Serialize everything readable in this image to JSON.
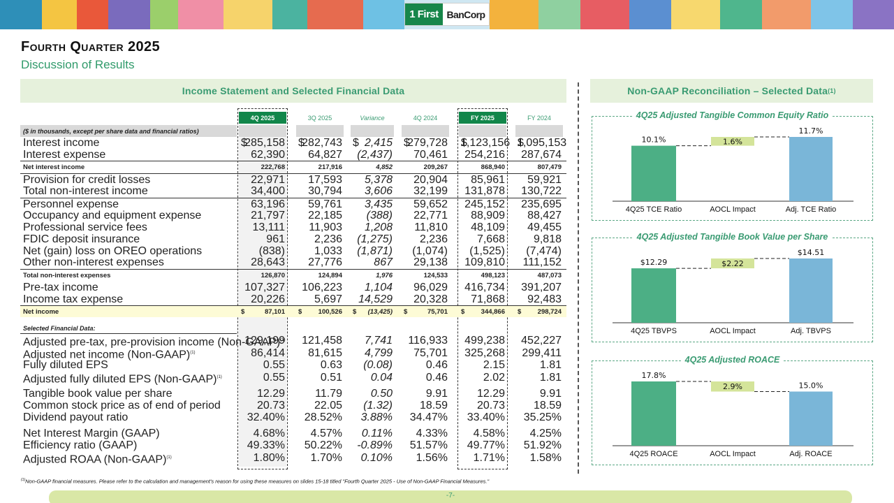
{
  "logo": {
    "left": "1 First",
    "right": "BanCorp"
  },
  "title": "Fourth Quarter 2025",
  "subtitle": "Discussion of Results",
  "left_header": "Income Statement and Selected Financial Data",
  "right_header": "Non-GAAP Reconciliation – Selected Data",
  "right_header_sup": "(1)",
  "table": {
    "columns": [
      "4Q 2025",
      "3Q 2025",
      "Variance",
      "4Q 2024",
      "FY 2025",
      "FY 2024"
    ],
    "subheader": "($ in thousands, except per share data and financial ratios)",
    "currency_symbol": "$",
    "selected_label": "Selected Financial Data:",
    "rows": [
      {
        "label": "Interest income",
        "values": [
          "285,158",
          "282,743",
          "2,415",
          "279,728",
          "1,123,156",
          "1,095,153"
        ],
        "dollar": true
      },
      {
        "label": "Interest expense",
        "values": [
          "62,390",
          "64,827",
          "(2,437)",
          "70,461",
          "254,216",
          "287,674"
        ]
      },
      {
        "label": "Net interest income",
        "values": [
          "222,768",
          "217,916",
          "4,852",
          "209,267",
          "868,940",
          "807,479"
        ]
      },
      {
        "label": "Provision for credit losses",
        "values": [
          "22,971",
          "17,593",
          "5,378",
          "20,904",
          "85,961",
          "59,921"
        ]
      },
      {
        "label": "Total non-interest income",
        "values": [
          "34,400",
          "30,794",
          "3,606",
          "32,199",
          "131,878",
          "130,722"
        ]
      },
      {
        "label": "Personnel expense",
        "values": [
          "63,196",
          "59,761",
          "3,435",
          "59,652",
          "245,152",
          "235,695"
        ]
      },
      {
        "label": "Occupancy and equipment expense",
        "values": [
          "21,797",
          "22,185",
          "(388)",
          "22,771",
          "88,909",
          "88,427"
        ]
      },
      {
        "label": "Professional service fees",
        "values": [
          "13,111",
          "11,903",
          "1,208",
          "11,810",
          "48,109",
          "49,455"
        ]
      },
      {
        "label": "FDIC deposit insurance",
        "values": [
          "961",
          "2,236",
          "(1,275)",
          "2,236",
          "7,668",
          "9,818"
        ]
      },
      {
        "label": "Net (gain) loss on OREO operations",
        "values": [
          "(838)",
          "1,033",
          "(1,871)",
          "(1,074)",
          "(1,525)",
          "(7,474)"
        ]
      },
      {
        "label": "Other non-interest expenses",
        "values": [
          "28,643",
          "27,776",
          "867",
          "29,138",
          "109,810",
          "111,152"
        ]
      },
      {
        "label": "Total non-interest expenses",
        "values": [
          "126,870",
          "124,894",
          "1,976",
          "124,533",
          "498,123",
          "487,073"
        ]
      },
      {
        "label": "Pre-tax income",
        "values": [
          "107,327",
          "106,223",
          "1,104",
          "96,029",
          "416,734",
          "391,207"
        ]
      },
      {
        "label": "Income tax expense",
        "values": [
          "20,226",
          "5,697",
          "14,529",
          "20,328",
          "71,868",
          "92,483"
        ]
      },
      {
        "label": "Net income",
        "values": [
          "87,101",
          "100,526",
          "(13,425)",
          "75,701",
          "344,866",
          "298,724"
        ],
        "dollar": true
      },
      {
        "label": "Adjusted pre-tax, pre-provision income (Non-GAAP)",
        "sup": "(1)",
        "values": [
          "129,199",
          "121,458",
          "7,741",
          "116,933",
          "499,238",
          "452,227"
        ]
      },
      {
        "label": "Adjusted net income (Non-GAAP)",
        "sup": "(1)",
        "values": [
          "86,414",
          "81,615",
          "4,799",
          "75,701",
          "325,268",
          "299,411"
        ]
      },
      {
        "label": "Fully diluted EPS",
        "values": [
          "0.55",
          "0.63",
          "(0.08)",
          "0.46",
          "2.15",
          "1.81"
        ]
      },
      {
        "label": "Adjusted fully diluted EPS (Non-GAAP)",
        "sup": "(1)",
        "values": [
          "0.55",
          "0.51",
          "0.04",
          "0.46",
          "2.02",
          "1.81"
        ]
      },
      {
        "label": "Tangible book value per share",
        "values": [
          "12.29",
          "11.79",
          "0.50",
          "9.91",
          "12.29",
          "9.91"
        ]
      },
      {
        "label": "Common stock price as of end of period",
        "values": [
          "20.73",
          "22.05",
          "(1.32)",
          "18.59",
          "20.73",
          "18.59"
        ]
      },
      {
        "label": "Dividend payout ratio",
        "values": [
          "32.40%",
          "28.52%",
          "3.88%",
          "34.47%",
          "33.40%",
          "35.25%"
        ]
      },
      {
        "label": "Net Interest Margin (GAAP)",
        "values": [
          "4.68%",
          "4.57%",
          "0.11%",
          "4.33%",
          "4.58%",
          "4.25%"
        ]
      },
      {
        "label": "Efficiency ratio (GAAP)",
        "values": [
          "49.33%",
          "50.22%",
          "-0.89%",
          "51.57%",
          "49.77%",
          "51.92%"
        ]
      },
      {
        "label": "Adjusted ROAA (Non-GAAP)",
        "sup": "(1)",
        "values": [
          "1.80%",
          "1.70%",
          "0.10%",
          "1.56%",
          "1.71%",
          "1.58%"
        ]
      }
    ]
  },
  "chart_data": [
    {
      "type": "bar",
      "title": "4Q25 Adjusted Tangible Common Equity Ratio",
      "categories": [
        "4Q25 TCE Ratio",
        "AOCL Impact",
        "Adj. TCE Ratio"
      ],
      "values": [
        10.1,
        1.6,
        11.7
      ],
      "labels": [
        "10.1%",
        "1.6%",
        "11.7%"
      ],
      "ylim": [
        0,
        11.7
      ],
      "colors": [
        "#4caf85",
        "#d4e49a",
        "#7ab6d8"
      ]
    },
    {
      "type": "bar",
      "title": "4Q25 Adjusted Tangible Book Value per Share",
      "categories": [
        "4Q25 TBVPS",
        "AOCL Impact",
        "Adj. TBVPS"
      ],
      "values": [
        12.29,
        2.22,
        14.51
      ],
      "labels": [
        "$12.29",
        "$2.22",
        "$14.51"
      ],
      "ylim": [
        0,
        14.51
      ],
      "colors": [
        "#4caf85",
        "#d4e49a",
        "#7ab6d8"
      ]
    },
    {
      "type": "bar",
      "title": "4Q25 Adjusted ROACE",
      "categories": [
        "4Q25 ROACE",
        "AOCL Impact",
        "Adj. ROACE"
      ],
      "values": [
        17.8,
        2.9,
        15.0
      ],
      "labels": [
        "17.8%",
        "2.9%",
        "15.0%"
      ],
      "ylim": [
        0,
        17.8
      ],
      "colors": [
        "#4caf85",
        "#d4e49a",
        "#7ab6d8"
      ]
    }
  ],
  "footnote_sup": "(1)",
  "footnote": "Non-GAAP financial measures. Please refer to the calculation and management's reason for using these measures on slides 15-18 titled \"Fourth Quarter 2025 - Use of Non-GAAP Financial Measures.\"",
  "page_number": "-7-"
}
